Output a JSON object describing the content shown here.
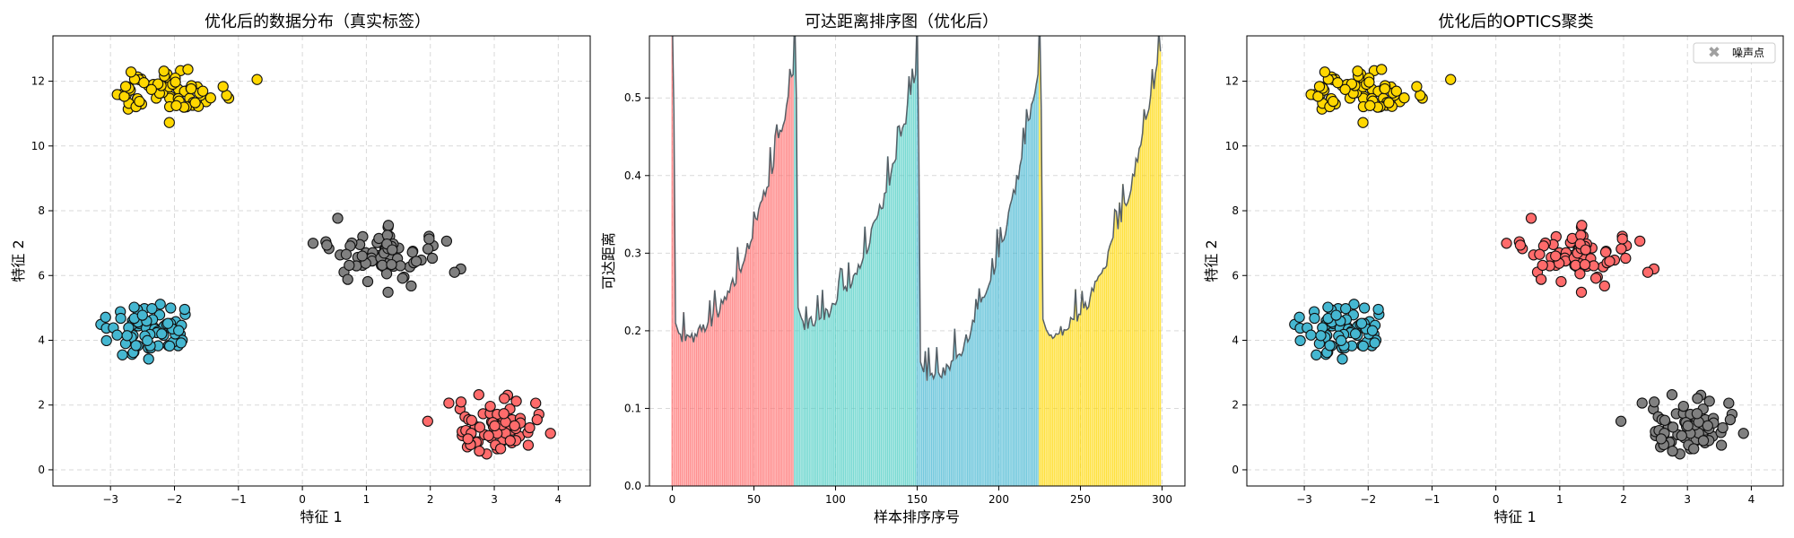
{
  "colors": {
    "cluster_0": "#ff6b6b",
    "cluster_1": "#4ecdc4",
    "cluster_2": "#45b7d1",
    "cluster_3": "#ffd700",
    "noise": "#808080",
    "reach_line": "#555f66"
  },
  "chart_data": [
    {
      "type": "scatter",
      "title": "优化后的数据分布（真实标签）",
      "xlabel": "特征 1",
      "ylabel": "特征 2",
      "xlim": [
        -3.9,
        4.5
      ],
      "ylim": [
        -0.5,
        13.4
      ],
      "xticks": [
        -3,
        -2,
        -1,
        0,
        1,
        2,
        3,
        4
      ],
      "yticks": [
        0,
        2,
        4,
        6,
        8,
        10,
        12
      ],
      "grid": true,
      "series": [
        {
          "color": "#ff6b6b",
          "center": [
            3.0,
            1.3
          ],
          "spread": [
            0.42,
            0.38
          ],
          "n": 75
        },
        {
          "color": "#808080",
          "center": [
            1.3,
            6.6
          ],
          "spread": [
            0.42,
            0.38
          ],
          "n": 75
        },
        {
          "color": "#45b7d1",
          "center": [
            -2.5,
            4.3
          ],
          "spread": [
            0.42,
            0.38
          ],
          "n": 75
        },
        {
          "color": "#ffd700",
          "center": [
            -2.1,
            11.7
          ],
          "spread": [
            0.42,
            0.38
          ],
          "n": 75
        }
      ]
    },
    {
      "type": "bar",
      "title": "可达距离排序图（优化后）",
      "xlabel": "样本排序序号",
      "ylabel": "可达距离",
      "xlim": [
        -14,
        314
      ],
      "ylim": [
        0,
        0.58
      ],
      "xticks": [
        0,
        50,
        100,
        150,
        200,
        250,
        300
      ],
      "yticks": [
        0.0,
        0.1,
        0.2,
        0.3,
        0.4,
        0.5
      ],
      "grid": true,
      "segments": [
        {
          "start": 0,
          "end": 75,
          "color": "#ff6b6b",
          "min": 0.19,
          "peak": 0.53
        },
        {
          "start": 75,
          "end": 150,
          "color": "#4ecdc4",
          "min": 0.21,
          "peak": 0.53
        },
        {
          "start": 150,
          "end": 225,
          "color": "#45b7d1",
          "min": 0.14,
          "peak": 0.53
        },
        {
          "start": 225,
          "end": 300,
          "color": "#ffd700",
          "min": 0.195,
          "peak": 0.56
        }
      ]
    },
    {
      "type": "scatter",
      "title": "优化后的OPTICS聚类",
      "xlabel": "特征 1",
      "ylabel": "特征 2",
      "xlim": [
        -3.9,
        4.5
      ],
      "ylim": [
        -0.5,
        13.4
      ],
      "xticks": [
        -3,
        -2,
        -1,
        0,
        1,
        2,
        3,
        4
      ],
      "yticks": [
        0,
        2,
        4,
        6,
        8,
        10,
        12
      ],
      "grid": true,
      "legend": {
        "position": "top-right",
        "entries": [
          "噪声点"
        ]
      },
      "series": [
        {
          "color": "#808080",
          "center": [
            3.0,
            1.3
          ],
          "spread": [
            0.42,
            0.38
          ],
          "n": 75
        },
        {
          "color": "#ff6b6b",
          "center": [
            1.3,
            6.6
          ],
          "spread": [
            0.42,
            0.38
          ],
          "n": 75
        },
        {
          "color": "#45b7d1",
          "center": [
            -2.5,
            4.3
          ],
          "spread": [
            0.42,
            0.38
          ],
          "n": 75
        },
        {
          "color": "#ffd700",
          "center": [
            -2.1,
            11.7
          ],
          "spread": [
            0.42,
            0.38
          ],
          "n": 75
        }
      ]
    }
  ]
}
